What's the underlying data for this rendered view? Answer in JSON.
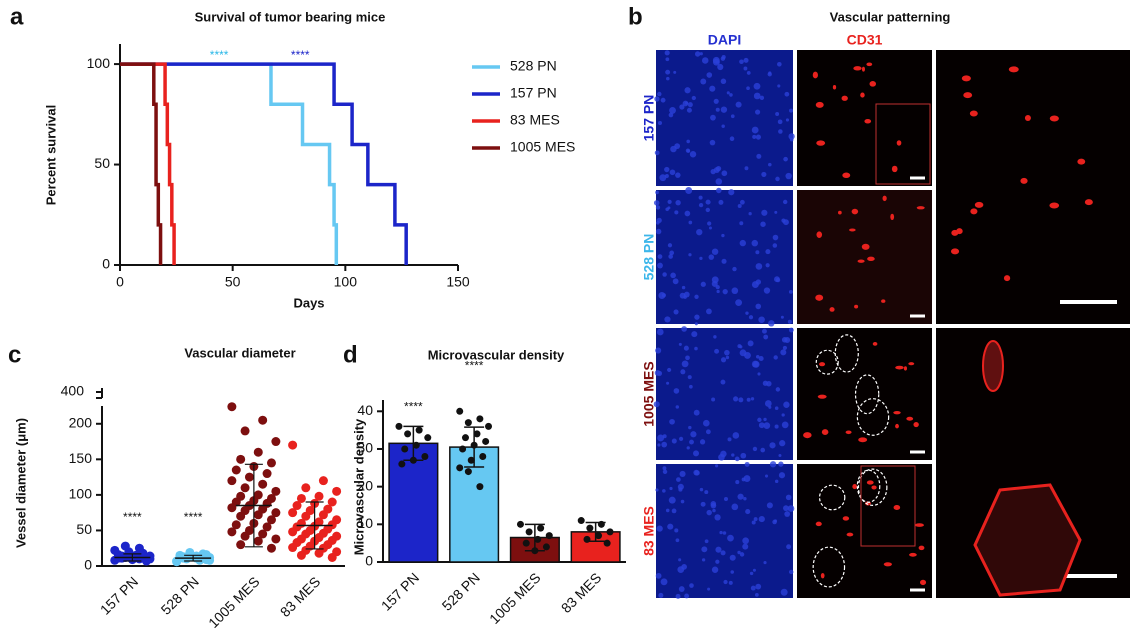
{
  "chart_data": [
    {
      "type": "step",
      "panel_label": "a",
      "title": "Survival of tumor bearing mice",
      "x_label": "Days",
      "y_label": "Percent survival",
      "xlim": [
        0,
        150
      ],
      "xticks": [
        0,
        50,
        100,
        150
      ],
      "ylim": [
        0,
        110
      ],
      "yticks": [
        0,
        50,
        100
      ],
      "legend": "right",
      "series": [
        {
          "name": "528 PN",
          "color": "#66c8f2",
          "x": [
            0,
            67,
            81,
            93,
            95,
            96
          ],
          "values": [
            100,
            80,
            60,
            40,
            20,
            0
          ]
        },
        {
          "name": "157 PN",
          "color": "#1c25c9",
          "x": [
            0,
            95,
            103,
            110,
            122,
            127
          ],
          "values": [
            100,
            80,
            60,
            40,
            20,
            0
          ]
        },
        {
          "name": "83 MES",
          "color": "#e8221e",
          "x": [
            0,
            20,
            21,
            22,
            23,
            24
          ],
          "values": [
            100,
            80,
            60,
            40,
            20,
            0
          ]
        },
        {
          "name": "1005 MES",
          "color": "#7d0f0f",
          "x": [
            0,
            15,
            16,
            17,
            18
          ],
          "values": [
            100,
            80,
            40,
            20,
            0
          ]
        }
      ],
      "annotations": [
        {
          "text": "****",
          "x": 44,
          "y": 104,
          "color": "#2ab8e8"
        },
        {
          "text": "****",
          "x": 80,
          "y": 104,
          "color": "#1c25c9"
        }
      ]
    },
    {
      "type": "dot",
      "panel_label": "c",
      "title": "Vascular diameter",
      "y_label": "Vessel diameter (μm)",
      "categories": [
        "157 PN",
        "528 PN",
        "1005 MES",
        "83 MES"
      ],
      "colors": [
        "#1c25c9",
        "#66c8f2",
        "#7d0f0f",
        "#e8221e"
      ],
      "ylim": [
        0,
        225
      ],
      "yticks": [
        0,
        50,
        100,
        150,
        200
      ],
      "axis_break_tick": 400,
      "points": [
        [
          8,
          10,
          12,
          14,
          15,
          11,
          9,
          13,
          16,
          18,
          20,
          22,
          25,
          28,
          10,
          12,
          14,
          7,
          9,
          11
        ],
        [
          6,
          8,
          10,
          12,
          14,
          11,
          9,
          13,
          15,
          17,
          19,
          7,
          10,
          12,
          8,
          11,
          13,
          16
        ],
        [
          224,
          205,
          190,
          175,
          160,
          150,
          145,
          140,
          135,
          130,
          125,
          120,
          115,
          110,
          105,
          100,
          98,
          95,
          92,
          90,
          88,
          85,
          82,
          80,
          78,
          75,
          72,
          70,
          65,
          60,
          58,
          55,
          50,
          48,
          45,
          42,
          38,
          35,
          30,
          25
        ],
        [
          170,
          120,
          110,
          105,
          98,
          95,
          90,
          88,
          85,
          80,
          78,
          75,
          72,
          70,
          65,
          62,
          60,
          58,
          56,
          55,
          52,
          50,
          48,
          46,
          45,
          42,
          40,
          38,
          36,
          35,
          33,
          30,
          28,
          26,
          25,
          22,
          20,
          18,
          15,
          12
        ]
      ],
      "means": [
        12,
        11,
        85,
        57
      ],
      "sd": [
        5,
        4,
        58,
        33
      ],
      "annotations": [
        {
          "text": "****",
          "category": 0,
          "y": 68
        },
        {
          "text": "****",
          "category": 1,
          "y": 68
        }
      ]
    },
    {
      "type": "bar",
      "panel_label": "d",
      "title": "Microvascular density",
      "y_label": "Microvascular density",
      "categories": [
        "157 PN",
        "528 PN",
        "1005 MES",
        "83 MES"
      ],
      "colors": [
        "#1c25c9",
        "#66c8f2",
        "#7d0f0f",
        "#e8221e"
      ],
      "ylim": [
        0,
        43
      ],
      "yticks": [
        0,
        10,
        20,
        30,
        40
      ],
      "values": [
        31.5,
        30.5,
        6.5,
        8
      ],
      "errors": [
        4.5,
        5.3,
        3.5,
        2.5
      ],
      "points": [
        [
          36,
          35,
          34,
          33,
          31,
          30,
          28,
          27,
          26
        ],
        [
          40,
          38,
          37,
          36,
          34,
          33,
          32,
          31,
          30,
          28,
          27,
          25,
          20,
          24
        ],
        [
          10,
          9,
          8,
          7,
          6,
          5,
          4,
          3
        ],
        [
          11,
          10,
          9,
          8,
          7,
          6,
          5
        ]
      ],
      "annotations": [
        {
          "text": "****",
          "category": 0,
          "y": 41
        },
        {
          "text": "****",
          "category": 1,
          "y": 52
        }
      ]
    }
  ],
  "panel_b": {
    "panel_label": "b",
    "title": "Vascular patterning",
    "column_labels": [
      "DAPI",
      "CD31"
    ],
    "row_labels": [
      "157 PN",
      "528 PN",
      "1005 MES",
      "83 MES"
    ],
    "column_colors": [
      "#2430d0",
      "#e8221e"
    ],
    "row_colors": [
      "#1c25c9",
      "#3cb6ea",
      "#7d0f0f",
      "#e8221e"
    ]
  }
}
